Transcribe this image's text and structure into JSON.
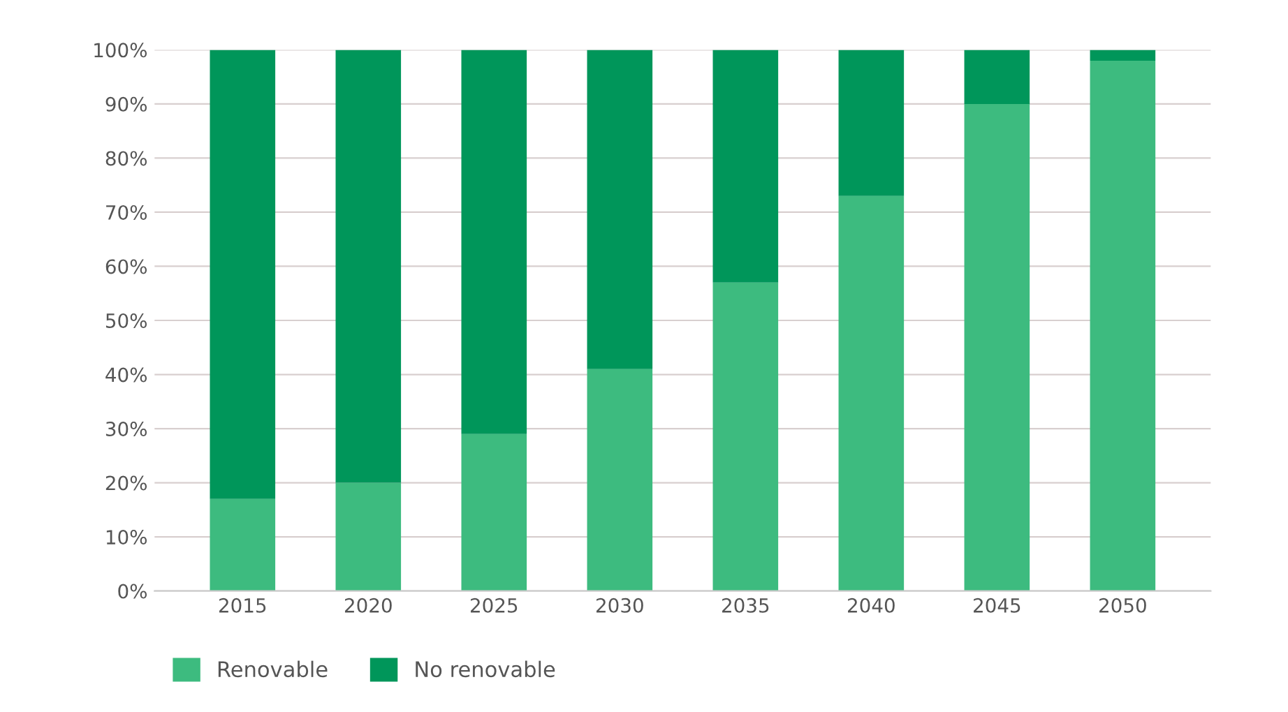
{
  "chart_data": {
    "type": "bar",
    "stacked": true,
    "categories": [
      "2015",
      "2020",
      "2025",
      "2030",
      "2035",
      "2040",
      "2045",
      "2050"
    ],
    "series": [
      {
        "name": "Renovable",
        "color": "#3dbb7f",
        "values": [
          17,
          20,
          29,
          41,
          57,
          73,
          90,
          98
        ]
      },
      {
        "name": "No renovable",
        "color": "#00965a",
        "values": [
          83,
          80,
          71,
          59,
          43,
          27,
          10,
          2
        ]
      }
    ],
    "ylim": [
      0,
      100
    ],
    "yticks": [
      {
        "value": 0,
        "label": "0%"
      },
      {
        "value": 10,
        "label": "10%"
      },
      {
        "value": 20,
        "label": "20%"
      },
      {
        "value": 30,
        "label": "30%"
      },
      {
        "value": 40,
        "label": "40%"
      },
      {
        "value": 50,
        "label": "50%"
      },
      {
        "value": 60,
        "label": "60%"
      },
      {
        "value": 70,
        "label": "70%"
      },
      {
        "value": 80,
        "label": "80%"
      },
      {
        "value": 90,
        "label": "90%"
      },
      {
        "value": 100,
        "label": "100%"
      }
    ],
    "grid": "y",
    "legend": "bottom left"
  }
}
